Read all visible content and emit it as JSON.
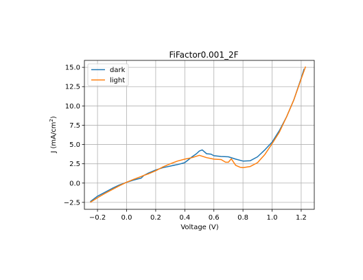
{
  "chart_data": {
    "type": "line",
    "title": "FiFactor0.001_2F",
    "xlabel": "Voltage (V)",
    "ylabel_main": "J (mA/cm",
    "ylabel_sup": "2",
    "ylabel_close": ")",
    "xlim": [
      -0.29,
      1.29
    ],
    "ylim": [
      -3.4,
      15.9
    ],
    "xticks": [
      -0.2,
      0.0,
      0.2,
      0.4,
      0.6,
      0.8,
      1.0,
      1.2
    ],
    "xtick_labels": [
      "−0.2",
      "0.0",
      "0.2",
      "0.4",
      "0.6",
      "0.8",
      "1.0",
      "1.2"
    ],
    "yticks": [
      -2.5,
      0.0,
      2.5,
      5.0,
      7.5,
      10.0,
      12.5,
      15.0
    ],
    "ytick_labels": [
      "−2.5",
      "0.0",
      "2.5",
      "5.0",
      "7.5",
      "10.0",
      "12.5",
      "15.0"
    ],
    "grid": true,
    "legend_position": "upper-left",
    "series": [
      {
        "name": "dark",
        "color": "#1f77b4",
        "x": [
          -0.25,
          -0.2,
          -0.15,
          -0.1,
          -0.05,
          0.0,
          0.05,
          0.1,
          0.12,
          0.15,
          0.2,
          0.25,
          0.3,
          0.35,
          0.4,
          0.45,
          0.48,
          0.5,
          0.52,
          0.55,
          0.58,
          0.6,
          0.65,
          0.7,
          0.75,
          0.8,
          0.85,
          0.9,
          0.95,
          1.0,
          1.05,
          1.1,
          1.15,
          1.2,
          1.22
        ],
        "y": [
          -2.4,
          -1.7,
          -1.2,
          -0.7,
          -0.25,
          0.1,
          0.4,
          0.65,
          1.0,
          1.3,
          1.7,
          2.0,
          2.2,
          2.4,
          2.65,
          3.4,
          3.8,
          4.15,
          4.3,
          3.8,
          3.75,
          3.55,
          3.45,
          3.4,
          3.1,
          2.85,
          2.9,
          3.4,
          4.3,
          5.3,
          6.8,
          8.6,
          10.8,
          13.6,
          14.8
        ]
      },
      {
        "name": "light",
        "color": "#ff7f0e",
        "x": [
          -0.25,
          -0.2,
          -0.15,
          -0.1,
          -0.05,
          0.0,
          0.05,
          0.1,
          0.12,
          0.15,
          0.2,
          0.25,
          0.3,
          0.35,
          0.4,
          0.45,
          0.5,
          0.55,
          0.6,
          0.65,
          0.68,
          0.7,
          0.72,
          0.75,
          0.78,
          0.8,
          0.85,
          0.9,
          0.95,
          1.0,
          1.05,
          1.1,
          1.15,
          1.2,
          1.23
        ],
        "y": [
          -2.5,
          -1.9,
          -1.35,
          -0.85,
          -0.35,
          0.1,
          0.5,
          0.85,
          1.0,
          1.2,
          1.6,
          2.1,
          2.5,
          2.85,
          3.1,
          3.3,
          3.6,
          3.3,
          3.1,
          3.05,
          2.7,
          2.7,
          3.15,
          2.3,
          2.05,
          2.0,
          2.15,
          2.65,
          3.7,
          5.1,
          6.6,
          8.6,
          10.8,
          13.5,
          15.1
        ]
      }
    ]
  }
}
